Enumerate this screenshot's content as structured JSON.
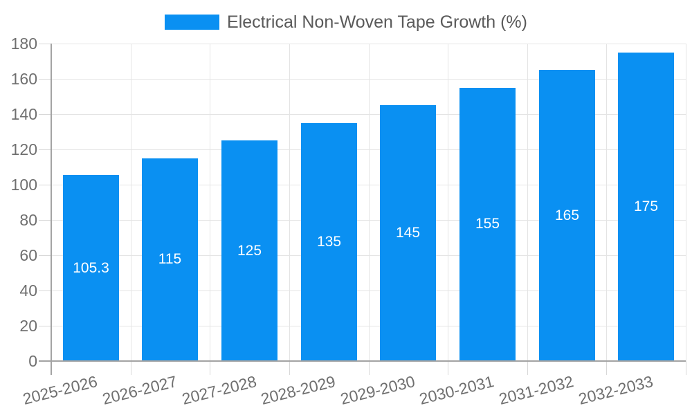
{
  "legend": {
    "label": "Electrical Non-Woven Tape Growth (%)"
  },
  "chart_data": {
    "type": "bar",
    "title": "Electrical Non-Woven Tape Growth (%)",
    "categories": [
      "2025-2026",
      "2026-2027",
      "2027-2028",
      "2028-2029",
      "2029-2030",
      "2030-2031",
      "2031-2032",
      "2032-2033"
    ],
    "values": [
      105.3,
      115,
      125,
      135,
      145,
      155,
      165,
      175
    ],
    "value_labels": [
      "105.3",
      "115",
      "125",
      "135",
      "145",
      "155",
      "165",
      "175"
    ],
    "xlabel": "",
    "ylabel": "",
    "ylim": [
      0,
      180
    ],
    "yticks": [
      0,
      20,
      40,
      60,
      80,
      100,
      120,
      140,
      160,
      180
    ],
    "grid": true,
    "legend_position": "top",
    "x_label_rotation_deg": -14
  },
  "colors": {
    "bar": "#0a90f2",
    "data_label": "#ffffff",
    "grid": "#e4e4e4",
    "overflow_tick": "#d8d8d8",
    "axis_line": "#a3a3a3",
    "axis_label": "#6f6f6f",
    "legend_text": "#5a5a5a",
    "background": "#ffffff"
  }
}
